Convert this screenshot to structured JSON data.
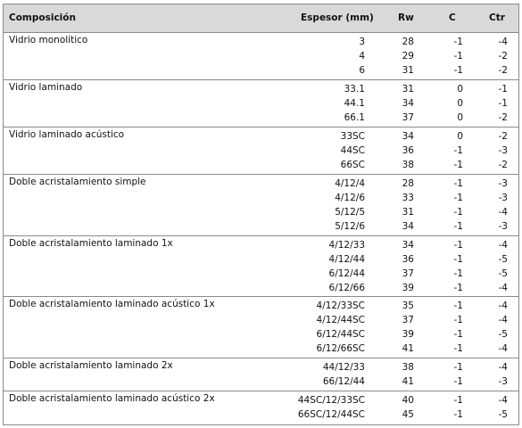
{
  "headers": {
    "composicion": "Composición",
    "espesor": "Espesor (mm)",
    "rw": "Rw",
    "c": "C",
    "ctr": "Ctr"
  },
  "groups": [
    {
      "name": "Vidrio monolítico",
      "rows": [
        {
          "espesor": "3",
          "rw": "28",
          "c": "-1",
          "ctr": "-4"
        },
        {
          "espesor": "4",
          "rw": "29",
          "c": "-1",
          "ctr": "-2"
        },
        {
          "espesor": "6",
          "rw": "31",
          "c": "-1",
          "ctr": "-2"
        }
      ]
    },
    {
      "name": "Vidrio laminado",
      "rows": [
        {
          "espesor": "33.1",
          "rw": "31",
          "c": "0",
          "ctr": "-1"
        },
        {
          "espesor": "44.1",
          "rw": "34",
          "c": "0",
          "ctr": "-1"
        },
        {
          "espesor": "66.1",
          "rw": "37",
          "c": "0",
          "ctr": "-2"
        }
      ]
    },
    {
      "name": "Vidrio laminado acústico",
      "rows": [
        {
          "espesor": "33SC",
          "rw": "34",
          "c": "0",
          "ctr": "-2"
        },
        {
          "espesor": "44SC",
          "rw": "36",
          "c": "-1",
          "ctr": "-3"
        },
        {
          "espesor": "66SC",
          "rw": "38",
          "c": "-1",
          "ctr": "-2"
        }
      ]
    },
    {
      "name": "Doble acristalamiento simple",
      "rows": [
        {
          "espesor": "4/12/4",
          "rw": "28",
          "c": "-1",
          "ctr": "-3"
        },
        {
          "espesor": "4/12/6",
          "rw": "33",
          "c": "-1",
          "ctr": "-3"
        },
        {
          "espesor": "5/12/5",
          "rw": "31",
          "c": "-1",
          "ctr": "-4"
        },
        {
          "espesor": "5/12/6",
          "rw": "34",
          "c": "-1",
          "ctr": "-3"
        }
      ]
    },
    {
      "name": "Doble acristalamiento laminado 1x",
      "rows": [
        {
          "espesor": "4/12/33",
          "rw": "34",
          "c": "-1",
          "ctr": "-4"
        },
        {
          "espesor": "4/12/44",
          "rw": "36",
          "c": "-1",
          "ctr": "-5"
        },
        {
          "espesor": "6/12/44",
          "rw": "37",
          "c": "-1",
          "ctr": "-5"
        },
        {
          "espesor": "6/12/66",
          "rw": "39",
          "c": "-1",
          "ctr": "-4"
        }
      ]
    },
    {
      "name": "Doble acristalamiento laminado acústico 1x",
      "rows": [
        {
          "espesor": "4/12/33SC",
          "rw": "35",
          "c": "-1",
          "ctr": "-4"
        },
        {
          "espesor": "4/12/44SC",
          "rw": "37",
          "c": "-1",
          "ctr": "-4"
        },
        {
          "espesor": "6/12/44SC",
          "rw": "39",
          "c": "-1",
          "ctr": "-5"
        },
        {
          "espesor": "6/12/66SC",
          "rw": "41",
          "c": "-1",
          "ctr": "-4"
        }
      ]
    },
    {
      "name": "Doble acristalamiento laminado 2x",
      "rows": [
        {
          "espesor": "44/12/33",
          "rw": "38",
          "c": "-1",
          "ctr": "-4"
        },
        {
          "espesor": "66/12/44",
          "rw": "41",
          "c": "-1",
          "ctr": "-3"
        }
      ]
    },
    {
      "name": "Doble acristalamiento laminado acústico 2x",
      "rows": [
        {
          "espesor": "44SC/12/33SC",
          "rw": "40",
          "c": "-1",
          "ctr": "-4"
        },
        {
          "espesor": "66SC/12/44SC",
          "rw": "45",
          "c": "-1",
          "ctr": "-5"
        }
      ]
    }
  ]
}
